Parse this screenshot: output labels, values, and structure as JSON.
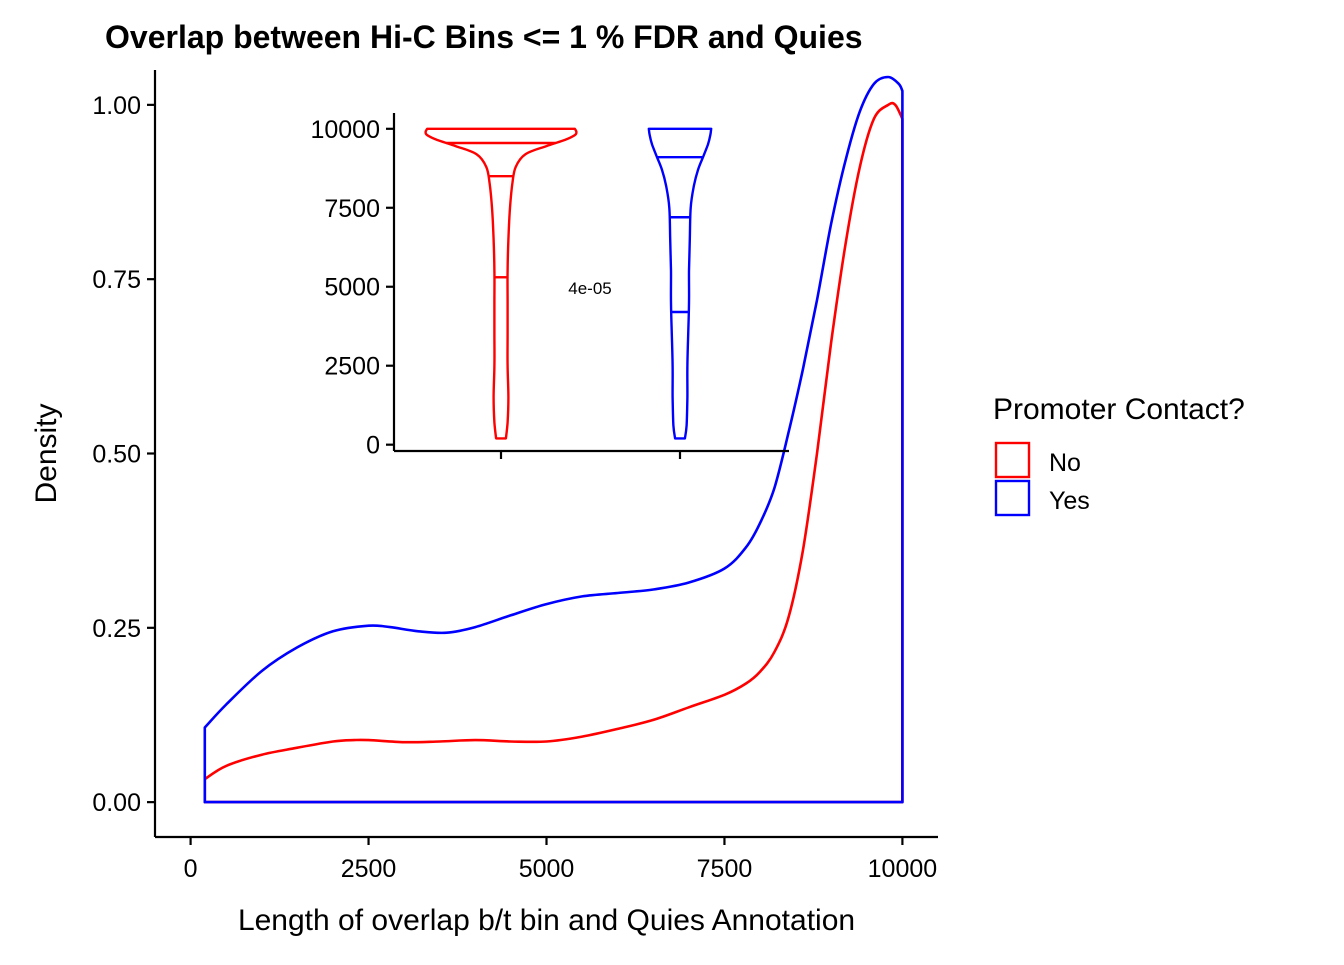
{
  "chart_data": [
    {
      "type": "area",
      "title": "Overlap between Hi-C Bins <= 1 % FDR and Quies",
      "xlabel": "Length of overlap b/t bin and Quies Annotation",
      "ylabel": "Density",
      "xlim": [
        -500,
        10500
      ],
      "ylim": [
        -0.05,
        1.05
      ],
      "xticks": [
        0,
        2500,
        5000,
        7500,
        10000
      ],
      "xtick_labels": [
        "0",
        "2500",
        "5000",
        "7500",
        "10000"
      ],
      "yticks": [
        0,
        0.25,
        0.5,
        0.75,
        1.0
      ],
      "ytick_labels": [
        "0.00",
        "0.25",
        "0.50",
        "0.75",
        "1.00"
      ],
      "grid": false,
      "legend": {
        "title": "Promoter Contact?",
        "position": "right",
        "entries": [
          {
            "label": "No",
            "color": "#ff0000"
          },
          {
            "label": "Yes",
            "color": "#0000ff"
          }
        ]
      },
      "series": [
        {
          "name": "No",
          "color": "#ff0000",
          "x": [
            200,
            500,
            1000,
            1500,
            2000,
            2300,
            2500,
            3000,
            3500,
            4000,
            4500,
            5000,
            5500,
            6000,
            6500,
            7000,
            7500,
            7800,
            8000,
            8200,
            8400,
            8600,
            8800,
            9000,
            9200,
            9400,
            9600,
            9800,
            9900,
            10000
          ],
          "values": [
            0.033,
            0.052,
            0.068,
            0.078,
            0.087,
            0.089,
            0.089,
            0.086,
            0.087,
            0.089,
            0.087,
            0.087,
            0.094,
            0.105,
            0.118,
            0.136,
            0.154,
            0.17,
            0.187,
            0.215,
            0.265,
            0.36,
            0.5,
            0.66,
            0.8,
            0.91,
            0.98,
            1.0,
            1.0,
            0.98
          ]
        },
        {
          "name": "Yes",
          "color": "#0000ff",
          "x": [
            200,
            500,
            1000,
            1500,
            2000,
            2500,
            2800,
            3200,
            3600,
            4000,
            4500,
            5000,
            5500,
            6000,
            6500,
            7000,
            7500,
            7800,
            8000,
            8200,
            8400,
            8600,
            8800,
            9000,
            9200,
            9400,
            9600,
            9800,
            9950,
            10000
          ],
          "values": [
            0.107,
            0.14,
            0.188,
            0.222,
            0.245,
            0.253,
            0.251,
            0.245,
            0.243,
            0.251,
            0.268,
            0.284,
            0.295,
            0.3,
            0.305,
            0.315,
            0.335,
            0.365,
            0.4,
            0.45,
            0.53,
            0.62,
            0.72,
            0.83,
            0.92,
            0.99,
            1.03,
            1.04,
            1.03,
            1.02
          ]
        }
      ]
    },
    {
      "type": "violin",
      "ylim": [
        -200,
        10500
      ],
      "yticks": [
        0,
        2500,
        5000,
        7500,
        10000
      ],
      "ytick_labels": [
        "0",
        "2500",
        "5000",
        "7500",
        "10000"
      ],
      "annotation": "4e-05",
      "groups": [
        {
          "name": "No",
          "color": "#ff0000",
          "quantiles": [
            5300,
            8500,
            9550
          ],
          "profile": [
            [
              200,
              0.06
            ],
            [
              700,
              0.08
            ],
            [
              1500,
              0.09
            ],
            [
              2500,
              0.08
            ],
            [
              3500,
              0.08
            ],
            [
              4500,
              0.08
            ],
            [
              5500,
              0.08
            ],
            [
              6500,
              0.09
            ],
            [
              7500,
              0.11
            ],
            [
              8300,
              0.14
            ],
            [
              8800,
              0.18
            ],
            [
              9200,
              0.3
            ],
            [
              9450,
              0.55
            ],
            [
              9650,
              0.78
            ],
            [
              9800,
              0.9
            ],
            [
              9900,
              0.92
            ],
            [
              10000,
              0.9
            ]
          ]
        },
        {
          "name": "Yes",
          "color": "#0000ff",
          "quantiles": [
            4200,
            7200,
            9100
          ],
          "profile": [
            [
              200,
              0.06
            ],
            [
              600,
              0.08
            ],
            [
              1500,
              0.09
            ],
            [
              2500,
              0.09
            ],
            [
              3500,
              0.1
            ],
            [
              4500,
              0.11
            ],
            [
              5500,
              0.11
            ],
            [
              6500,
              0.12
            ],
            [
              7500,
              0.13
            ],
            [
              8200,
              0.17
            ],
            [
              8700,
              0.22
            ],
            [
              9100,
              0.28
            ],
            [
              9500,
              0.34
            ],
            [
              9800,
              0.37
            ],
            [
              10000,
              0.38
            ]
          ]
        }
      ]
    }
  ]
}
